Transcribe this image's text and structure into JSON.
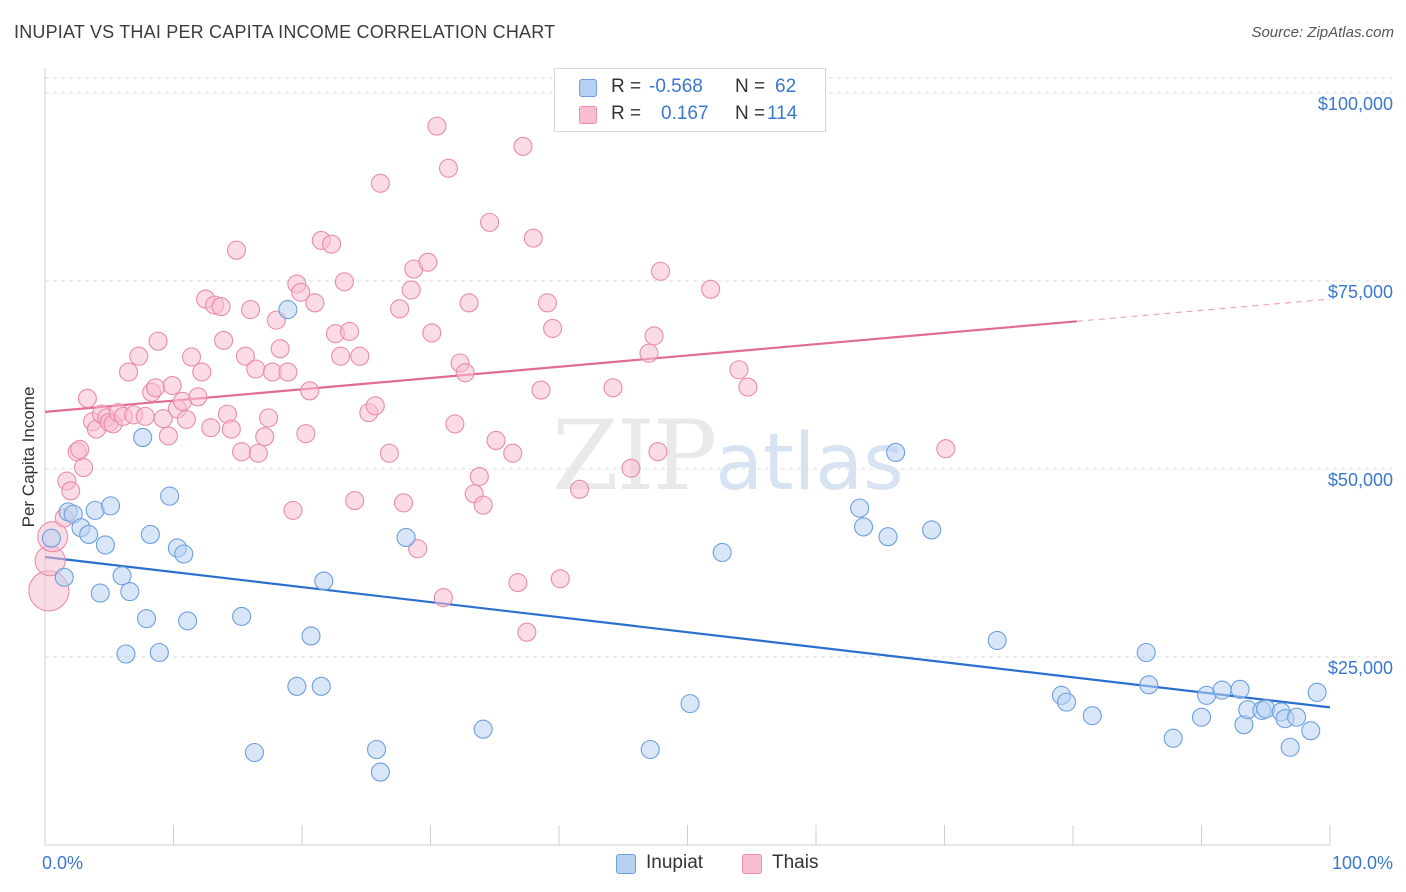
{
  "title": "INUPIAT VS THAI PER CAPITA INCOME CORRELATION CHART",
  "source": "Source: ZipAtlas.com",
  "watermark": {
    "zip": "ZIP",
    "atlas": "atlas"
  },
  "legend": {
    "r_label": "R =",
    "n_label": "N =",
    "inupiat": {
      "r": "-0.568",
      "n": "62"
    },
    "thai": {
      "r": "0.167",
      "n": "114"
    }
  },
  "colors": {
    "inupiat_fill": "#b8d1f3",
    "inupiat_stroke": "#6d9fe0",
    "inupiat_line": "#2b6fce",
    "thai_fill": "#f7bed1",
    "thai_stroke": "#e98cab",
    "thai_line": "#e06b95",
    "axis_text": "#3a78d0",
    "grid": "#dedede"
  },
  "chart_data": {
    "type": "scatter",
    "title": "INUPIAT VS THAI PER CAPITA INCOME CORRELATION CHART",
    "xlabel": "",
    "ylabel": "Per Capita Income",
    "xlim": [
      0,
      100
    ],
    "ylim": [
      0,
      102000
    ],
    "x_tick_labels": [
      "0.0%",
      "100.0%"
    ],
    "y_ticks": [
      25000,
      50000,
      75000,
      100000
    ],
    "y_tick_labels": [
      "$25,000",
      "$50,000",
      "$75,000",
      "$100,000"
    ],
    "legend_position": "bottom-center",
    "series": [
      {
        "name": "Inupiat",
        "r": -0.568,
        "n": 62,
        "trend": {
          "x0": 0,
          "y0": 38300,
          "x1": 100,
          "y1": 18300,
          "solid_to": 100
        },
        "points": [
          [
            0.5,
            40800
          ],
          [
            1.5,
            35600
          ],
          [
            1.8,
            44300
          ],
          [
            2.2,
            44000
          ],
          [
            2.8,
            42200
          ],
          [
            3.4,
            41300
          ],
          [
            3.9,
            44500
          ],
          [
            4.3,
            33500
          ],
          [
            4.7,
            39900
          ],
          [
            5.1,
            45100
          ],
          [
            6.0,
            35800
          ],
          [
            6.3,
            25400
          ],
          [
            6.6,
            33700
          ],
          [
            7.6,
            54200
          ],
          [
            7.9,
            30100
          ],
          [
            8.2,
            41300
          ],
          [
            8.9,
            25600
          ],
          [
            9.7,
            46400
          ],
          [
            10.3,
            39500
          ],
          [
            10.8,
            38700
          ],
          [
            11.1,
            29800
          ],
          [
            15.3,
            30400
          ],
          [
            16.3,
            12300
          ],
          [
            18.9,
            71200
          ],
          [
            19.6,
            21100
          ],
          [
            20.7,
            27800
          ],
          [
            21.5,
            21100
          ],
          [
            21.7,
            35100
          ],
          [
            25.8,
            12700
          ],
          [
            26.1,
            9700
          ],
          [
            28.1,
            40900
          ],
          [
            34.1,
            15400
          ],
          [
            47.1,
            12700
          ],
          [
            50.2,
            18800
          ],
          [
            52.7,
            38900
          ],
          [
            63.4,
            44800
          ],
          [
            63.7,
            42300
          ],
          [
            65.6,
            41000
          ],
          [
            66.2,
            52200
          ],
          [
            69.0,
            41900
          ],
          [
            74.1,
            27200
          ],
          [
            79.1,
            19900
          ],
          [
            79.5,
            19000
          ],
          [
            81.5,
            17200
          ],
          [
            85.7,
            25600
          ],
          [
            85.9,
            21300
          ],
          [
            87.8,
            14200
          ],
          [
            90.0,
            17000
          ],
          [
            90.4,
            19900
          ],
          [
            91.6,
            20600
          ],
          [
            93.0,
            20700
          ],
          [
            93.3,
            16000
          ],
          [
            93.6,
            18000
          ],
          [
            94.7,
            17900
          ],
          [
            95.0,
            18100
          ],
          [
            96.2,
            17700
          ],
          [
            96.5,
            16800
          ],
          [
            96.9,
            13000
          ],
          [
            97.4,
            17000
          ],
          [
            98.5,
            15200
          ],
          [
            99.0,
            20300
          ]
        ]
      },
      {
        "name": "Thais",
        "r": 0.167,
        "n": 114,
        "trend": {
          "x0": 0,
          "y0": 57600,
          "x1": 100,
          "y1": 72600,
          "solid_to": 80.3
        },
        "points": [
          [
            0.3,
            33800
          ],
          [
            0.4,
            37800
          ],
          [
            0.6,
            41000
          ],
          [
            1.5,
            43500
          ],
          [
            1.7,
            48400
          ],
          [
            2.0,
            47100
          ],
          [
            2.5,
            52300
          ],
          [
            2.7,
            52600
          ],
          [
            3.0,
            50200
          ],
          [
            3.3,
            59400
          ],
          [
            3.7,
            56300
          ],
          [
            4.0,
            55300
          ],
          [
            4.4,
            57300
          ],
          [
            4.8,
            56800
          ],
          [
            5.0,
            56200
          ],
          [
            5.3,
            56000
          ],
          [
            5.7,
            57500
          ],
          [
            6.1,
            57000
          ],
          [
            6.5,
            62900
          ],
          [
            6.9,
            57200
          ],
          [
            7.3,
            65000
          ],
          [
            7.8,
            57000
          ],
          [
            8.3,
            60200
          ],
          [
            8.6,
            60800
          ],
          [
            8.8,
            67000
          ],
          [
            9.2,
            56700
          ],
          [
            9.6,
            54400
          ],
          [
            9.9,
            61100
          ],
          [
            10.3,
            58000
          ],
          [
            10.7,
            59000
          ],
          [
            11.0,
            56600
          ],
          [
            11.4,
            64900
          ],
          [
            11.9,
            59600
          ],
          [
            12.2,
            62900
          ],
          [
            12.5,
            72600
          ],
          [
            12.9,
            55500
          ],
          [
            13.2,
            71800
          ],
          [
            13.7,
            71600
          ],
          [
            13.9,
            67100
          ],
          [
            14.2,
            57300
          ],
          [
            14.5,
            55300
          ],
          [
            14.9,
            79100
          ],
          [
            15.3,
            52300
          ],
          [
            15.6,
            65000
          ],
          [
            16.0,
            71200
          ],
          [
            16.4,
            63300
          ],
          [
            16.6,
            52100
          ],
          [
            17.1,
            54300
          ],
          [
            17.4,
            56800
          ],
          [
            17.7,
            62900
          ],
          [
            18.0,
            69800
          ],
          [
            18.3,
            66000
          ],
          [
            18.9,
            62900
          ],
          [
            19.3,
            44500
          ],
          [
            19.6,
            74600
          ],
          [
            19.9,
            73500
          ],
          [
            20.3,
            54700
          ],
          [
            20.6,
            60400
          ],
          [
            21.0,
            72100
          ],
          [
            21.5,
            80400
          ],
          [
            22.3,
            79900
          ],
          [
            22.6,
            68000
          ],
          [
            23.0,
            65000
          ],
          [
            23.3,
            74900
          ],
          [
            23.7,
            68300
          ],
          [
            24.1,
            45800
          ],
          [
            24.5,
            65000
          ],
          [
            25.2,
            57500
          ],
          [
            25.7,
            58400
          ],
          [
            26.1,
            88000
          ],
          [
            26.8,
            52100
          ],
          [
            27.6,
            71300
          ],
          [
            27.9,
            45500
          ],
          [
            28.5,
            73800
          ],
          [
            28.7,
            76600
          ],
          [
            29.0,
            39400
          ],
          [
            29.8,
            77500
          ],
          [
            30.1,
            68100
          ],
          [
            30.5,
            95600
          ],
          [
            31.0,
            32900
          ],
          [
            31.4,
            90000
          ],
          [
            31.9,
            56000
          ],
          [
            32.3,
            64100
          ],
          [
            32.7,
            62800
          ],
          [
            33.0,
            72100
          ],
          [
            33.4,
            46700
          ],
          [
            33.8,
            49000
          ],
          [
            34.1,
            45200
          ],
          [
            34.6,
            82800
          ],
          [
            35.1,
            53800
          ],
          [
            36.4,
            52100
          ],
          [
            36.8,
            34900
          ],
          [
            37.2,
            92900
          ],
          [
            37.5,
            28300
          ],
          [
            38.0,
            80700
          ],
          [
            38.6,
            60500
          ],
          [
            39.1,
            72100
          ],
          [
            39.5,
            68700
          ],
          [
            40.1,
            35400
          ],
          [
            41.6,
            47300
          ],
          [
            44.2,
            60800
          ],
          [
            45.6,
            50100
          ],
          [
            47.0,
            65400
          ],
          [
            47.4,
            67700
          ],
          [
            47.7,
            52300
          ],
          [
            47.9,
            76300
          ],
          [
            51.8,
            73900
          ],
          [
            54.0,
            63200
          ],
          [
            54.7,
            60900
          ],
          [
            70.1,
            52700
          ]
        ]
      }
    ]
  }
}
